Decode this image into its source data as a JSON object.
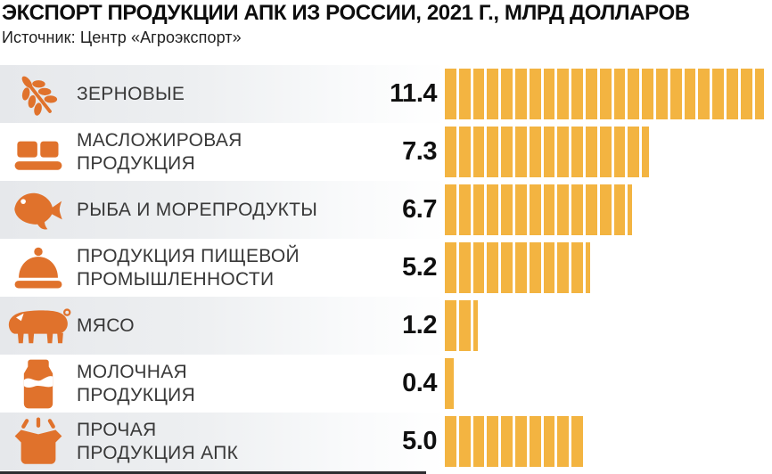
{
  "header": {
    "title": "ЭКСПОРТ ПРОДУКЦИИ АПК ИЗ РОССИИ, 2021 Г., МЛРД ДОЛЛАРОВ",
    "source": "Источник: Центр «Агроэкспорт»"
  },
  "colors": {
    "bar": "#f3b441",
    "icon": "#e0722c",
    "row_stripe": "#e6e8eb",
    "title_text": "#0d0d0d",
    "label_text": "#383838",
    "value_text": "#101010",
    "bottom_line": "#2d2d30"
  },
  "chart_data": {
    "type": "bar",
    "orientation": "horizontal",
    "title": "ЭКСПОРТ ПРОДУКЦИИ АПК ИЗ РОССИИ, 2021 Г., МЛРД ДОЛЛАРОВ",
    "source": "Источник: Центр «Агроэкспорт»",
    "unit": "млрд долларов",
    "unit_per_segment": 0.5,
    "categories": [
      "ЗЕРНОВЫЕ",
      "МАСЛОЖИРОВАЯ ПРОДУКЦИЯ",
      "РЫБА И МОРЕПРОДУКТЫ",
      "ПРОДУКЦИЯ ПИЩЕВОЙ ПРОМЫШЛЕННОСТИ",
      "МЯСО",
      "МОЛОЧНАЯ ПРОДУКЦИЯ",
      "ПРОЧАЯ ПРОДУКЦИЯ АПК"
    ],
    "values": [
      11.4,
      7.3,
      6.7,
      5.2,
      1.2,
      0.4,
      5.0
    ],
    "value_labels": [
      "11.4",
      "7.3",
      "6.7",
      "5.2",
      "1.2",
      "0.4",
      "5.0"
    ],
    "icons": [
      "wheat-icon",
      "butter-icon",
      "fish-icon",
      "cloche-icon",
      "pig-icon",
      "milk-bottle-icon",
      "pot-icon"
    ],
    "xlim": [
      0,
      11.6
    ],
    "grid": false,
    "legend": false
  },
  "rows": [
    {
      "label_lines": [
        "ЗЕРНОВЫЕ"
      ],
      "value": "11.4",
      "icon": "wheat-icon",
      "striped": true
    },
    {
      "label_lines": [
        "МАСЛОЖИРОВАЯ",
        "ПРОДУКЦИЯ"
      ],
      "value": "7.3",
      "icon": "butter-icon",
      "striped": false
    },
    {
      "label_lines": [
        "РЫБА И МОРЕПРОДУКТЫ"
      ],
      "value": "6.7",
      "icon": "fish-icon",
      "striped": true
    },
    {
      "label_lines": [
        "ПРОДУКЦИЯ ПИЩЕВОЙ",
        "ПРОМЫШЛЕННОСТИ"
      ],
      "value": "5.2",
      "icon": "cloche-icon",
      "striped": false
    },
    {
      "label_lines": [
        "МЯСО"
      ],
      "value": "1.2",
      "icon": "pig-icon",
      "striped": true
    },
    {
      "label_lines": [
        "МОЛОЧНАЯ",
        "ПРОДУКЦИЯ"
      ],
      "value": "0.4",
      "icon": "milk-bottle-icon",
      "striped": false
    },
    {
      "label_lines": [
        "ПРОЧАЯ",
        "ПРОДУКЦИЯ АПК"
      ],
      "value": "5.0",
      "icon": "pot-icon",
      "striped": true
    }
  ]
}
